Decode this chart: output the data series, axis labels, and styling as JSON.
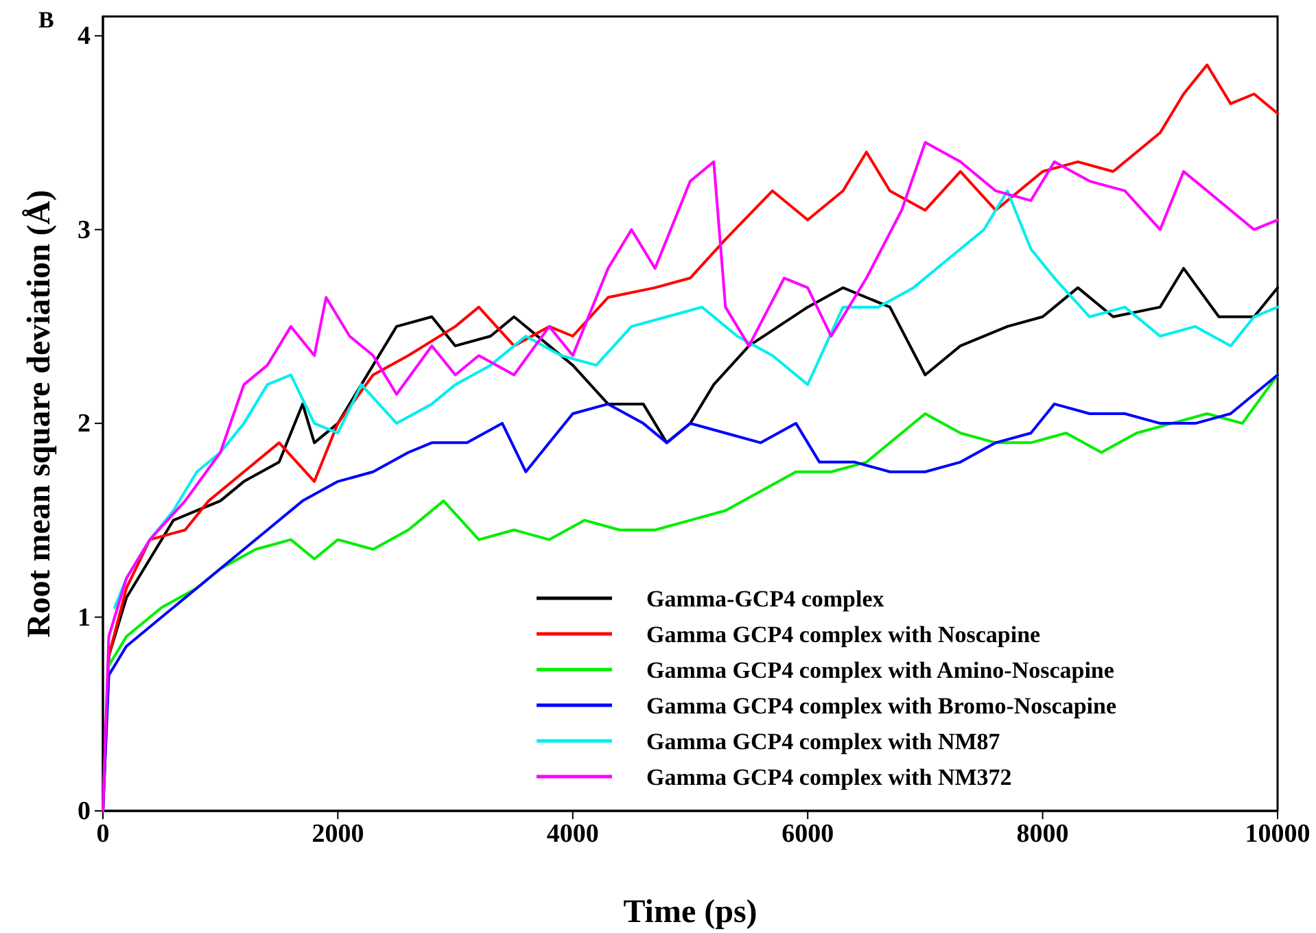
{
  "chart_data": {
    "type": "line",
    "xlabel": "Time (ps)",
    "ylabel": "Root mean square deviation (Å)",
    "annotations": [
      "B"
    ],
    "xlim": [
      0,
      10000
    ],
    "xticks": [
      0,
      2000,
      4000,
      6000,
      8000,
      10000
    ],
    "ylim": [
      0,
      4.1
    ],
    "yticks": [
      0,
      1,
      2,
      3,
      4
    ],
    "grid": false,
    "legend": "bottom right",
    "line_style": "solid",
    "marker": "none",
    "series": [
      {
        "name": "Gamma-GCP4 complex",
        "color": "#000000",
        "x": [
          0,
          50,
          200,
          400,
          600,
          800,
          1000,
          1200,
          1500,
          1700,
          1800,
          2000,
          2200,
          2500,
          2800,
          3000,
          3300,
          3500,
          3800,
          4000,
          4300,
          4600,
          4800,
          5000,
          5200,
          5500,
          6000,
          6300,
          6700,
          7000,
          7300,
          7700,
          8000,
          8300,
          8600,
          9000,
          9200,
          9500,
          9800,
          10000
        ],
        "values": [
          0,
          0.8,
          1.1,
          1.3,
          1.5,
          1.55,
          1.6,
          1.7,
          1.8,
          2.1,
          1.9,
          2.0,
          2.2,
          2.5,
          2.55,
          2.4,
          2.45,
          2.55,
          2.4,
          2.3,
          2.1,
          2.1,
          1.9,
          2.0,
          2.2,
          2.4,
          2.6,
          2.7,
          2.6,
          2.25,
          2.4,
          2.5,
          2.55,
          2.7,
          2.55,
          2.6,
          2.8,
          2.55,
          2.55,
          2.7
        ]
      },
      {
        "name": "Gamma GCP4 complex with Noscapine",
        "color": "#ff0000",
        "x": [
          0,
          50,
          200,
          400,
          700,
          900,
          1200,
          1500,
          1800,
          2000,
          2300,
          2600,
          3000,
          3200,
          3500,
          3800,
          4000,
          4300,
          4700,
          5000,
          5300,
          5700,
          6000,
          6300,
          6500,
          6700,
          7000,
          7300,
          7600,
          8000,
          8300,
          8600,
          9000,
          9200,
          9400,
          9600,
          9800,
          10000
        ],
        "values": [
          0,
          0.8,
          1.15,
          1.4,
          1.45,
          1.6,
          1.75,
          1.9,
          1.7,
          2.0,
          2.25,
          2.35,
          2.5,
          2.6,
          2.4,
          2.5,
          2.45,
          2.65,
          2.7,
          2.75,
          2.95,
          3.2,
          3.05,
          3.2,
          3.4,
          3.2,
          3.1,
          3.3,
          3.1,
          3.3,
          3.35,
          3.3,
          3.5,
          3.7,
          3.85,
          3.65,
          3.7,
          3.6
        ]
      },
      {
        "name": "Gamma GCP4 complex with Amino-Noscapine",
        "color": "#00ee00",
        "x": [
          0,
          50,
          200,
          500,
          800,
          1000,
          1300,
          1600,
          1800,
          2000,
          2300,
          2600,
          2900,
          3200,
          3500,
          3800,
          4100,
          4400,
          4700,
          5000,
          5300,
          5600,
          5900,
          6200,
          6500,
          6800,
          7000,
          7300,
          7600,
          7900,
          8200,
          8500,
          8800,
          9100,
          9400,
          9700,
          10000
        ],
        "values": [
          0,
          0.75,
          0.9,
          1.05,
          1.15,
          1.25,
          1.35,
          1.4,
          1.3,
          1.4,
          1.35,
          1.45,
          1.6,
          1.4,
          1.45,
          1.4,
          1.5,
          1.45,
          1.45,
          1.5,
          1.55,
          1.65,
          1.75,
          1.75,
          1.8,
          1.95,
          2.05,
          1.95,
          1.9,
          1.9,
          1.95,
          1.85,
          1.95,
          2.0,
          2.05,
          2.0,
          2.25
        ]
      },
      {
        "name": "Gamma GCP4 complex with Bromo-Noscapine",
        "color": "#0000ff",
        "x": [
          0,
          50,
          200,
          500,
          800,
          1100,
          1400,
          1700,
          2000,
          2300,
          2600,
          2800,
          3100,
          3400,
          3600,
          3800,
          4000,
          4300,
          4600,
          4800,
          5000,
          5300,
          5600,
          5900,
          6100,
          6400,
          6700,
          7000,
          7300,
          7600,
          7900,
          8100,
          8400,
          8700,
          9000,
          9300,
          9600,
          10000
        ],
        "values": [
          0,
          0.7,
          0.85,
          1.0,
          1.15,
          1.3,
          1.45,
          1.6,
          1.7,
          1.75,
          1.85,
          1.9,
          1.9,
          2.0,
          1.75,
          1.9,
          2.05,
          2.1,
          2.0,
          1.9,
          2.0,
          1.95,
          1.9,
          2.0,
          1.8,
          1.8,
          1.75,
          1.75,
          1.8,
          1.9,
          1.95,
          2.1,
          2.05,
          2.05,
          2.0,
          2.0,
          2.05,
          2.25
        ]
      },
      {
        "name": "Gamma GCP4 complex with NM87",
        "color": "#00eeee",
        "x": [
          100,
          200,
          400,
          600,
          800,
          1000,
          1200,
          1400,
          1600,
          1800,
          2000,
          2200,
          2500,
          2800,
          3000,
          3300,
          3600,
          3900,
          4200,
          4500,
          4800,
          5100,
          5400,
          5700,
          6000,
          6300,
          6600,
          6900,
          7200,
          7500,
          7700,
          7900,
          8100,
          8400,
          8700,
          9000,
          9300,
          9600,
          9800,
          10000
        ],
        "values": [
          1.05,
          1.2,
          1.4,
          1.55,
          1.75,
          1.85,
          2.0,
          2.2,
          2.25,
          2.0,
          1.95,
          2.2,
          2.0,
          2.1,
          2.2,
          2.3,
          2.45,
          2.35,
          2.3,
          2.5,
          2.55,
          2.6,
          2.45,
          2.35,
          2.2,
          2.6,
          2.6,
          2.7,
          2.85,
          3.0,
          3.2,
          2.9,
          2.75,
          2.55,
          2.6,
          2.45,
          2.5,
          2.4,
          2.55,
          2.6
        ]
      },
      {
        "name": "Gamma GCP4 complex with NM372",
        "color": "#ff00ff",
        "x": [
          0,
          50,
          200,
          400,
          700,
          1000,
          1200,
          1400,
          1600,
          1800,
          1900,
          2100,
          2300,
          2500,
          2800,
          3000,
          3200,
          3500,
          3800,
          4000,
          4300,
          4500,
          4700,
          5000,
          5200,
          5300,
          5500,
          5800,
          6000,
          6200,
          6500,
          6800,
          7000,
          7300,
          7600,
          7900,
          8100,
          8400,
          8700,
          9000,
          9200,
          9500,
          9800,
          10000
        ],
        "values": [
          0,
          0.9,
          1.2,
          1.4,
          1.6,
          1.85,
          2.2,
          2.3,
          2.5,
          2.35,
          2.65,
          2.45,
          2.35,
          2.15,
          2.4,
          2.25,
          2.35,
          2.25,
          2.5,
          2.35,
          2.8,
          3.0,
          2.8,
          3.25,
          3.35,
          2.6,
          2.4,
          2.75,
          2.7,
          2.45,
          2.75,
          3.1,
          3.45,
          3.35,
          3.2,
          3.15,
          3.35,
          3.25,
          3.2,
          3.0,
          3.3,
          3.15,
          3.0,
          3.05
        ]
      }
    ]
  }
}
